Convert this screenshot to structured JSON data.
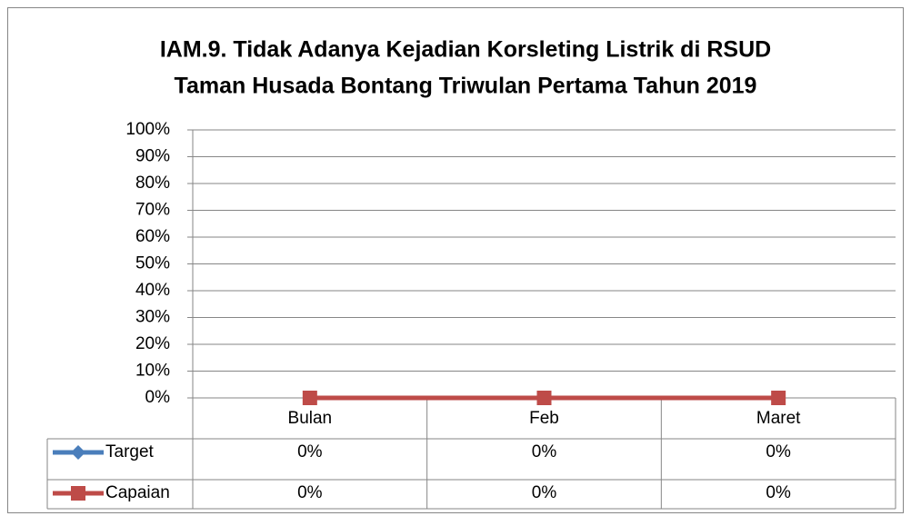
{
  "chart_data": {
    "type": "line",
    "title": [
      "IAM.9. Tidak Adanya Kejadian Korsleting Listrik di RSUD",
      "Taman Husada Bontang Triwulan Pertama Tahun 2019"
    ],
    "categories": [
      "Bulan",
      "Feb",
      "Maret"
    ],
    "series": [
      {
        "name": "Target",
        "color": "#4a7ebb",
        "marker": "diamond",
        "values": [
          0,
          0,
          0
        ],
        "value_labels": [
          "0%",
          "0%",
          "0%"
        ]
      },
      {
        "name": "Capaian",
        "color": "#be4b48",
        "marker": "square",
        "values": [
          0,
          0,
          0
        ],
        "value_labels": [
          "0%",
          "0%",
          "0%"
        ]
      }
    ],
    "ylim": [
      0,
      100
    ],
    "yticks": [
      {
        "value": 0,
        "label": "0%"
      },
      {
        "value": 10,
        "label": "10%"
      },
      {
        "value": 20,
        "label": "20%"
      },
      {
        "value": 30,
        "label": "30%"
      },
      {
        "value": 40,
        "label": "40%"
      },
      {
        "value": 50,
        "label": "50%"
      },
      {
        "value": 60,
        "label": "60%"
      },
      {
        "value": 70,
        "label": "70%"
      },
      {
        "value": 80,
        "label": "80%"
      },
      {
        "value": 90,
        "label": "90%"
      },
      {
        "value": 100,
        "label": "100%"
      }
    ],
    "grid": true,
    "legend": "data-table"
  }
}
